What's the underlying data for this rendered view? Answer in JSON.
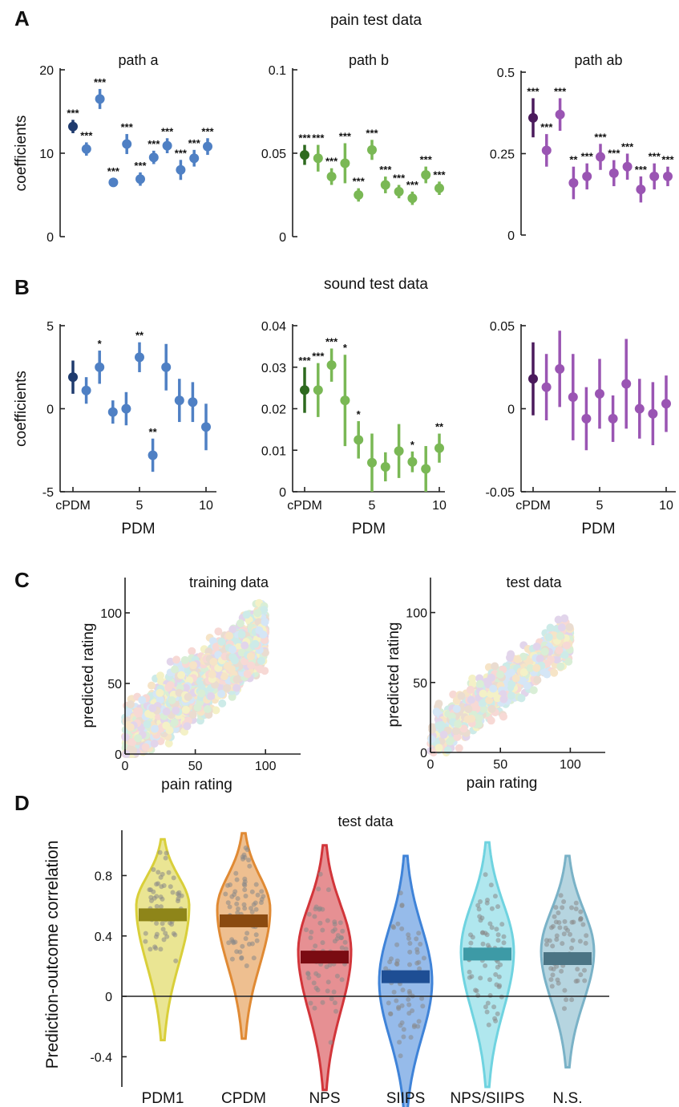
{
  "chart_data": [
    {
      "id": "A1",
      "type": "scatter",
      "panel_letter": "A",
      "section_title": "pain test data",
      "title": "path a",
      "ylabel": "coefficients",
      "ylim": [
        0,
        20
      ],
      "yticks": [
        "0",
        "10",
        "20"
      ],
      "x": [
        1,
        2,
        3,
        4,
        5,
        6,
        7,
        8,
        9,
        10,
        11
      ],
      "values": [
        13.2,
        10.5,
        16.5,
        6.5,
        11.1,
        6.9,
        9.5,
        10.9,
        8.0,
        9.4,
        10.8
      ],
      "errors": [
        0.8,
        0.8,
        1.2,
        0.5,
        1.2,
        0.8,
        0.8,
        0.9,
        1.2,
        1.0,
        1.0
      ],
      "stars": [
        "***",
        "***",
        "***",
        "***",
        "***",
        "***",
        "***",
        "***",
        "***",
        "***",
        "***"
      ],
      "colors": [
        "#1f3b6e",
        "#4f80c4"
      ]
    },
    {
      "id": "A2",
      "type": "scatter",
      "title": "path b",
      "ylim": [
        0,
        0.1
      ],
      "yticks": [
        "0",
        "0.05",
        "0.1"
      ],
      "x": [
        1,
        2,
        3,
        4,
        5,
        6,
        7,
        8,
        9,
        10,
        11
      ],
      "values": [
        0.049,
        0.047,
        0.036,
        0.044,
        0.025,
        0.052,
        0.031,
        0.027,
        0.023,
        0.037,
        0.029
      ],
      "errors": [
        0.006,
        0.008,
        0.005,
        0.012,
        0.004,
        0.006,
        0.005,
        0.004,
        0.004,
        0.005,
        0.004
      ],
      "stars": [
        "***",
        "***",
        "***",
        "***",
        "***",
        "***",
        "***",
        "***",
        "***",
        "***",
        "***"
      ],
      "colors": [
        "#2e6a1f",
        "#7ab855"
      ]
    },
    {
      "id": "A3",
      "type": "scatter",
      "title": "path ab",
      "ylim": [
        0,
        0.5
      ],
      "yticks": [
        "0",
        "0.25",
        "0.5"
      ],
      "x": [
        1,
        2,
        3,
        4,
        5,
        6,
        7,
        8,
        9,
        10,
        11
      ],
      "values": [
        0.36,
        0.26,
        0.37,
        0.16,
        0.18,
        0.24,
        0.19,
        0.21,
        0.14,
        0.18,
        0.18
      ],
      "errors": [
        0.06,
        0.05,
        0.05,
        0.05,
        0.04,
        0.04,
        0.04,
        0.04,
        0.04,
        0.04,
        0.03
      ],
      "stars": [
        "***",
        "***",
        "***",
        "**",
        "***",
        "***",
        "***",
        "***",
        "***",
        "***",
        "***"
      ],
      "colors": [
        "#4b1a5c",
        "#9a55b3"
      ]
    },
    {
      "id": "B1",
      "type": "scatter",
      "panel_letter": "B",
      "section_title": "sound test data",
      "ylabel": "coefficients",
      "xlabel": "PDM",
      "ylim": [
        -5,
        5
      ],
      "yticks": [
        "-5",
        "0",
        "5"
      ],
      "xticks": [
        "cPDM",
        "5",
        "10"
      ],
      "x": [
        1,
        2,
        3,
        4,
        5,
        6,
        7,
        8,
        9,
        10,
        11
      ],
      "values": [
        1.9,
        1.1,
        2.5,
        -0.2,
        0.0,
        3.1,
        -2.8,
        2.5,
        0.5,
        0.4,
        -1.1
      ],
      "errors": [
        1.0,
        0.8,
        1.0,
        0.7,
        1.0,
        0.9,
        1.0,
        1.4,
        1.3,
        1.2,
        1.4
      ],
      "stars": [
        "",
        "",
        "*",
        "",
        "",
        "**",
        "**",
        "",
        "",
        "",
        ""
      ],
      "colors": [
        "#1f3b6e",
        "#4f80c4"
      ]
    },
    {
      "id": "B2",
      "type": "scatter",
      "xlabel": "PDM",
      "ylim": [
        0,
        0.04
      ],
      "yticks": [
        "0",
        "0.01",
        "0.02",
        "0.03",
        "0.04"
      ],
      "xticks": [
        "cPDM",
        "5",
        "10"
      ],
      "x": [
        1,
        2,
        3,
        4,
        5,
        6,
        7,
        8,
        9,
        10,
        11
      ],
      "values": [
        0.0245,
        0.0245,
        0.0305,
        0.022,
        0.0125,
        0.007,
        0.006,
        0.0098,
        0.0072,
        0.0055,
        0.0105
      ],
      "errors": [
        0.0055,
        0.0065,
        0.004,
        0.011,
        0.0045,
        0.007,
        0.0035,
        0.0065,
        0.0025,
        0.0055,
        0.0035
      ],
      "stars": [
        "***",
        "***",
        "***",
        "*",
        "*",
        "",
        "",
        "",
        "*",
        "",
        "**"
      ],
      "colors": [
        "#2e6a1f",
        "#7ab855"
      ]
    },
    {
      "id": "B3",
      "type": "scatter",
      "xlabel": "PDM",
      "ylim": [
        -0.05,
        0.05
      ],
      "yticks": [
        "-0.05",
        "0",
        "0.05"
      ],
      "xticks": [
        "cPDM",
        "5",
        "10"
      ],
      "x": [
        1,
        2,
        3,
        4,
        5,
        6,
        7,
        8,
        9,
        10,
        11
      ],
      "values": [
        0.018,
        0.013,
        0.024,
        0.007,
        -0.006,
        0.009,
        -0.006,
        0.015,
        0.0,
        -0.003,
        0.003
      ],
      "errors": [
        0.022,
        0.02,
        0.023,
        0.026,
        0.019,
        0.021,
        0.014,
        0.027,
        0.018,
        0.019,
        0.017
      ],
      "stars": [
        "",
        "",
        "",
        "",
        "",
        "",
        "",
        "",
        "",
        "",
        ""
      ],
      "colors": [
        "#4b1a5c",
        "#9a55b3"
      ]
    },
    {
      "id": "C1",
      "type": "scatter",
      "panel_letter": "C",
      "title": "training data",
      "xlabel": "pain rating",
      "ylabel": "predicted rating",
      "xlim": [
        0,
        125
      ],
      "ylim": [
        0,
        125
      ],
      "xticks": [
        "0",
        "50",
        "100"
      ],
      "yticks": [
        "0",
        "50",
        "100"
      ],
      "trend": {
        "slope": 0.75,
        "intercept": 10,
        "spread": 14
      },
      "n_points": 2600
    },
    {
      "id": "C2",
      "type": "scatter",
      "title": "test data",
      "xlabel": "pain rating",
      "ylabel": "predicted rating",
      "xlim": [
        0,
        125
      ],
      "ylim": [
        0,
        125
      ],
      "xticks": [
        "0",
        "50",
        "100"
      ],
      "yticks": [
        "0",
        "50",
        "100"
      ],
      "trend": {
        "slope": 0.72,
        "intercept": 10,
        "spread": 11
      },
      "n_points": 900
    },
    {
      "id": "D",
      "type": "violin",
      "panel_letter": "D",
      "title": "test data",
      "ylabel": "Prediction-outcome correlation",
      "ylim": [
        -0.6,
        1.1
      ],
      "yticks": [
        "-0.4",
        "0",
        "0.4",
        "0.8"
      ],
      "categories": [
        "PDM1",
        "CPDM",
        "NPS",
        "SIIPS",
        "NPS/SIIPS",
        "N.S."
      ],
      "means": [
        0.54,
        0.5,
        0.26,
        0.13,
        0.28,
        0.25
      ],
      "min": [
        -0.29,
        -0.28,
        -0.62,
        -0.76,
        -0.6,
        -0.47
      ],
      "max": [
        1.04,
        1.08,
        1.0,
        0.93,
        1.02,
        0.93
      ],
      "peak": [
        0.6,
        0.58,
        0.3,
        0.1,
        0.3,
        0.3
      ],
      "colors": [
        "#d9cf3a",
        "#e08a34",
        "#d2353a",
        "#3f83d8",
        "#6fd3e0",
        "#7ab2c7"
      ],
      "dark": [
        "#8e8519",
        "#8a4a10",
        "#7a0b12",
        "#1e4e94",
        "#3d9aa6",
        "#4b7484"
      ]
    }
  ]
}
